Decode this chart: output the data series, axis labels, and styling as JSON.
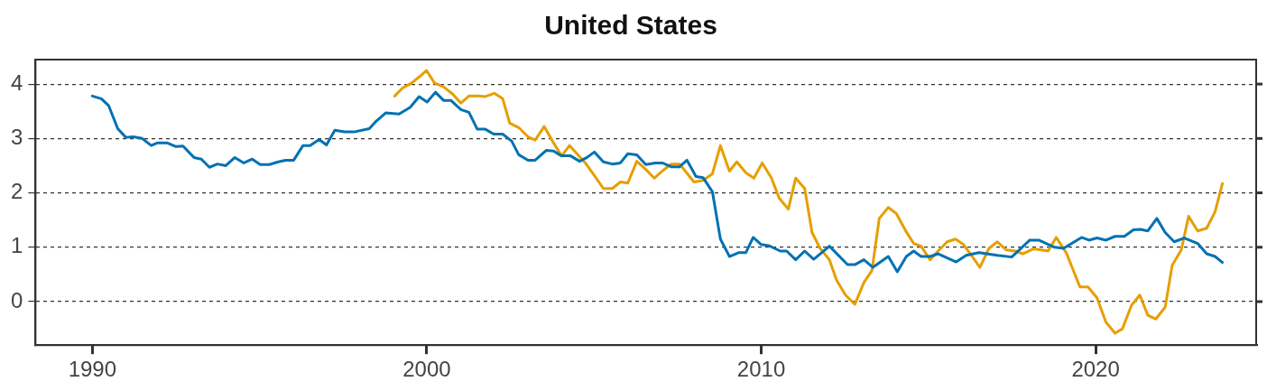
{
  "chart_data": {
    "type": "line",
    "title": "United States",
    "xlim": [
      1988.3,
      2024.8
    ],
    "xticks": [
      1990,
      2000,
      2010,
      2020
    ],
    "ylim": [
      -0.8,
      4.45
    ],
    "yticks": [
      0,
      1,
      2,
      3,
      4
    ],
    "grid": "y",
    "legend": false,
    "marker": "none",
    "line_style": "solid",
    "series": [
      {
        "color": "#0072b2",
        "x": [
          1990.0,
          1990.27,
          1990.49,
          1990.76,
          1991.0,
          1991.22,
          1991.49,
          1991.76,
          1991.95,
          1992.23,
          1992.5,
          1992.71,
          1993.04,
          1993.26,
          1993.5,
          1993.74,
          1993.99,
          1994.26,
          1994.53,
          1994.78,
          1995.02,
          1995.29,
          1995.56,
          1995.78,
          1996.02,
          1996.3,
          1996.51,
          1996.78,
          1997.0,
          1997.25,
          1997.54,
          1997.82,
          1998.28,
          1998.49,
          1998.77,
          1999.17,
          1999.5,
          1999.77,
          2000.01,
          2000.26,
          2000.5,
          2000.72,
          2001.02,
          2001.26,
          2001.51,
          2001.75,
          2002.0,
          2002.27,
          2002.54,
          2002.75,
          2003.03,
          2003.24,
          2003.57,
          2003.79,
          2004.03,
          2004.3,
          2004.57,
          2004.79,
          2005.01,
          2005.28,
          2005.55,
          2005.79,
          2006.01,
          2006.28,
          2006.55,
          2006.83,
          2007.04,
          2007.31,
          2007.56,
          2007.78,
          2008.05,
          2008.26,
          2008.54,
          2008.78,
          2009.05,
          2009.32,
          2009.54,
          2009.76,
          2010.0,
          2010.22,
          2010.57,
          2010.76,
          2011.03,
          2011.3,
          2011.57,
          2012.04,
          2012.58,
          2012.8,
          2013.07,
          2013.34,
          2013.8,
          2014.07,
          2014.34,
          2014.56,
          2014.78,
          2015.05,
          2015.29,
          2015.83,
          2016.13,
          2016.51,
          2017.06,
          2017.49,
          2018.03,
          2018.3,
          2018.77,
          2019.04,
          2019.58,
          2019.8,
          2020.04,
          2020.31,
          2020.58,
          2020.86,
          2021.13,
          2021.34,
          2021.56,
          2021.83,
          2022.08,
          2022.35,
          2022.65,
          2023.05,
          2023.32,
          2023.57,
          2023.79
        ],
        "values": [
          3.78,
          3.73,
          3.6,
          3.18,
          3.02,
          3.03,
          3.0,
          2.87,
          2.92,
          2.92,
          2.85,
          2.86,
          2.65,
          2.62,
          2.47,
          2.53,
          2.5,
          2.65,
          2.55,
          2.62,
          2.52,
          2.52,
          2.57,
          2.6,
          2.6,
          2.87,
          2.87,
          2.98,
          2.88,
          3.15,
          3.12,
          3.12,
          3.18,
          3.32,
          3.47,
          3.45,
          3.57,
          3.77,
          3.67,
          3.85,
          3.7,
          3.7,
          3.53,
          3.48,
          3.17,
          3.17,
          3.08,
          3.08,
          2.95,
          2.7,
          2.6,
          2.6,
          2.78,
          2.77,
          2.68,
          2.68,
          2.58,
          2.65,
          2.75,
          2.57,
          2.53,
          2.55,
          2.72,
          2.7,
          2.52,
          2.55,
          2.55,
          2.48,
          2.48,
          2.6,
          2.3,
          2.28,
          2.02,
          1.15,
          0.83,
          0.9,
          0.9,
          1.18,
          1.05,
          1.03,
          0.93,
          0.93,
          0.77,
          0.93,
          0.78,
          1.02,
          0.68,
          0.68,
          0.77,
          0.63,
          0.83,
          0.55,
          0.83,
          0.93,
          0.83,
          0.83,
          0.88,
          0.73,
          0.85,
          0.9,
          0.85,
          0.82,
          1.13,
          1.13,
          1.0,
          0.98,
          1.18,
          1.13,
          1.17,
          1.13,
          1.2,
          1.2,
          1.32,
          1.33,
          1.3,
          1.53,
          1.27,
          1.1,
          1.17,
          1.07,
          0.88,
          0.83,
          0.72
        ]
      },
      {
        "color": "#e69f00",
        "x": [
          1999.04,
          1999.28,
          1999.55,
          1999.77,
          1999.99,
          2000.23,
          2000.5,
          2000.77,
          2001.02,
          2001.26,
          2001.53,
          2001.75,
          2002.02,
          2002.27,
          2002.48,
          2002.75,
          2003.03,
          2003.24,
          2003.51,
          2003.76,
          2004.03,
          2004.27,
          2004.52,
          2004.74,
          2005.01,
          2005.28,
          2005.55,
          2005.79,
          2006.01,
          2006.28,
          2006.55,
          2006.8,
          2007.04,
          2007.31,
          2007.56,
          2007.99,
          2008.26,
          2008.54,
          2008.78,
          2009.05,
          2009.27,
          2009.54,
          2009.78,
          2010.03,
          2010.3,
          2010.54,
          2010.81,
          2011.03,
          2011.3,
          2011.52,
          2011.76,
          2012.04,
          2012.25,
          2012.52,
          2012.8,
          2013.07,
          2013.31,
          2013.53,
          2013.8,
          2014.04,
          2014.34,
          2014.56,
          2014.78,
          2015.05,
          2015.29,
          2015.56,
          2015.81,
          2016.05,
          2016.32,
          2016.54,
          2016.81,
          2017.06,
          2017.33,
          2017.6,
          2017.82,
          2018.14,
          2018.58,
          2018.82,
          2019.12,
          2019.53,
          2019.77,
          2020.04,
          2020.31,
          2020.58,
          2020.8,
          2021.07,
          2021.32,
          2021.56,
          2021.8,
          2022.08,
          2022.29,
          2022.56,
          2022.78,
          2023.05,
          2023.32,
          2023.57,
          2023.79
        ],
        "values": [
          3.78,
          3.93,
          4.02,
          4.13,
          4.25,
          4.02,
          3.95,
          3.82,
          3.65,
          3.78,
          3.78,
          3.77,
          3.83,
          3.73,
          3.28,
          3.2,
          3.03,
          2.97,
          3.22,
          2.95,
          2.68,
          2.87,
          2.7,
          2.55,
          2.32,
          2.08,
          2.08,
          2.2,
          2.18,
          2.58,
          2.43,
          2.27,
          2.4,
          2.53,
          2.53,
          2.2,
          2.23,
          2.35,
          2.87,
          2.4,
          2.57,
          2.37,
          2.27,
          2.55,
          2.28,
          1.9,
          1.7,
          2.27,
          2.08,
          1.27,
          0.98,
          0.77,
          0.4,
          0.12,
          -0.05,
          0.35,
          0.57,
          1.53,
          1.73,
          1.62,
          1.28,
          1.07,
          1.02,
          0.77,
          0.93,
          1.1,
          1.15,
          1.05,
          0.82,
          0.63,
          0.98,
          1.1,
          0.95,
          0.93,
          0.88,
          0.97,
          0.93,
          1.18,
          0.9,
          0.27,
          0.27,
          0.07,
          -0.38,
          -0.58,
          -0.5,
          -0.07,
          0.12,
          -0.25,
          -0.32,
          -0.1,
          0.67,
          0.95,
          1.57,
          1.3,
          1.35,
          1.65,
          2.17
        ]
      }
    ]
  }
}
